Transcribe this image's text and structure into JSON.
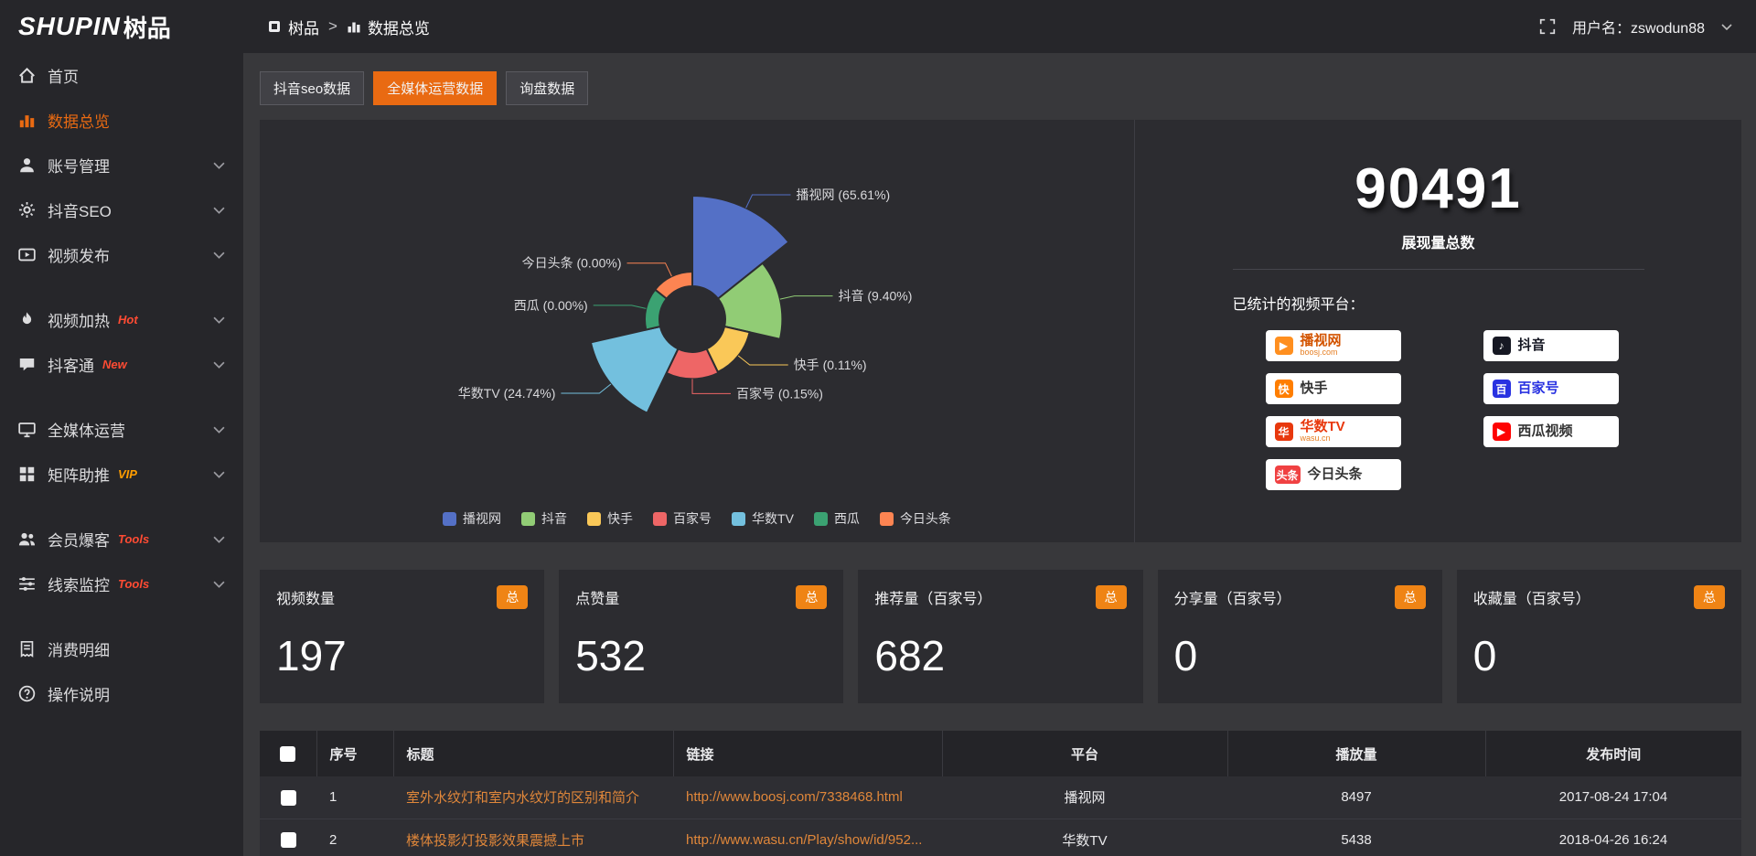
{
  "colors": {
    "accent": "#e96a12",
    "link": "#e0873a",
    "badge": "#ef8415",
    "panel": "#2c2c30"
  },
  "logo": {
    "brand": "SHUPIN",
    "brand_cn": "树品"
  },
  "topbar": {
    "breadcrumb": [
      {
        "label": "树品",
        "icon": "cube"
      },
      {
        "label": "数据总览",
        "icon": "chart"
      }
    ],
    "separator": ">",
    "username": "用户名：zswodun88"
  },
  "sidebar": {
    "items": [
      {
        "label": "首页",
        "icon": "home"
      },
      {
        "label": "数据总览",
        "icon": "chart",
        "active": true
      },
      {
        "label": "账号管理",
        "icon": "user",
        "chevron": true
      },
      {
        "label": "抖音SEO",
        "icon": "gear",
        "chevron": true
      },
      {
        "label": "视频发布",
        "icon": "video",
        "chevron": true
      },
      {
        "label": "视频加热",
        "icon": "fire",
        "tag": "Hot",
        "tag_color": "#ff4b33",
        "chevron": true,
        "group_break": true
      },
      {
        "label": "抖客通",
        "icon": "chat",
        "tag": "New",
        "tag_color": "#ff4b33",
        "chevron": true
      },
      {
        "label": "全媒体运营",
        "icon": "monitor",
        "chevron": true,
        "group_break": true
      },
      {
        "label": "矩阵助推",
        "icon": "grid",
        "tag": "VIP",
        "tag_color": "#ff9d00",
        "chevron": true
      },
      {
        "label": "会员爆客",
        "icon": "users",
        "tag": "Tools",
        "tag_color": "#ff4b33",
        "chevron": true,
        "group_break": true
      },
      {
        "label": "线索监控",
        "icon": "sliders",
        "tag": "Tools",
        "tag_color": "#ff4b33",
        "chevron": true
      },
      {
        "label": "消费明细",
        "icon": "receipt",
        "group_break": true
      },
      {
        "label": "操作说明",
        "icon": "question"
      }
    ]
  },
  "tabs": [
    {
      "label": "抖音seo数据"
    },
    {
      "label": "全媒体运营数据",
      "active": true
    },
    {
      "label": "询盘数据"
    }
  ],
  "chart_data": {
    "type": "pie",
    "variant": "rose",
    "unit": "%",
    "slices": [
      {
        "name": "播视网",
        "value": 65.61,
        "color": "#5470c6"
      },
      {
        "name": "抖音",
        "value": 9.4,
        "color": "#91cc75"
      },
      {
        "name": "快手",
        "value": 0.11,
        "color": "#fac858"
      },
      {
        "name": "百家号",
        "value": 0.15,
        "color": "#ee6666"
      },
      {
        "name": "华数TV",
        "value": 24.74,
        "color": "#73c0de"
      },
      {
        "name": "西瓜",
        "value": 0.0,
        "color": "#3ba272"
      },
      {
        "name": "今日头条",
        "value": 0.0,
        "color": "#fc8452"
      }
    ],
    "legend": [
      "播视网",
      "抖音",
      "快手",
      "百家号",
      "华数TV",
      "西瓜",
      "今日头条"
    ],
    "legend_position": "bottom",
    "label_format": "{name} ({value}%)"
  },
  "summary": {
    "total_value": "90491",
    "total_label": "展现量总数",
    "platforms_title": "已统计的视频平台：",
    "platforms": [
      {
        "name": "播视网",
        "sub": "boosj.com",
        "icon_char": "▶",
        "icon_bg": "#ff8f1f",
        "name_color": "#d35400"
      },
      {
        "name": "抖音",
        "icon_char": "♪",
        "icon_bg": "#161823",
        "name_color": "#161823"
      },
      {
        "name": "快手",
        "icon_char": "快",
        "icon_bg": "#ff7e00",
        "name_color": "#333333"
      },
      {
        "name": "百家号",
        "icon_char": "百",
        "icon_bg": "#2932e1",
        "name_color": "#2932e1"
      },
      {
        "name": "华数TV",
        "sub": "wasu.cn",
        "icon_char": "华",
        "icon_bg": "#e8380d",
        "name_color": "#e8380d"
      },
      {
        "name": "西瓜视频",
        "icon_char": "▶",
        "icon_bg": "#fe0302",
        "name_color": "#333333"
      },
      {
        "name": "今日头条",
        "icon_char": "头条",
        "icon_bg": "#f04142",
        "name_color": "#333333"
      }
    ]
  },
  "stat_cards": [
    {
      "label": "视频数量",
      "badge": "总",
      "value": "197"
    },
    {
      "label": "点赞量",
      "badge": "总",
      "value": "532"
    },
    {
      "label": "推荐量（百家号）",
      "badge": "总",
      "value": "682"
    },
    {
      "label": "分享量（百家号）",
      "badge": "总",
      "value": "0"
    },
    {
      "label": "收藏量（百家号）",
      "badge": "总",
      "value": "0"
    }
  ],
  "table": {
    "headers": [
      "序号",
      "标题",
      "链接",
      "平台",
      "播放量",
      "发布时间"
    ],
    "rows": [
      {
        "no": "1",
        "title": "室外水纹灯和室内水纹灯的区别和简介",
        "link": "http://www.boosj.com/7338468.html",
        "platform": "播视网",
        "plays": "8497",
        "time": "2017-08-24 17:04"
      },
      {
        "no": "2",
        "title": "楼体投影灯投影效果震撼上市",
        "link": "http://www.wasu.cn/Play/show/id/952...",
        "platform": "华数TV",
        "plays": "5438",
        "time": "2018-04-26 16:24"
      }
    ]
  }
}
